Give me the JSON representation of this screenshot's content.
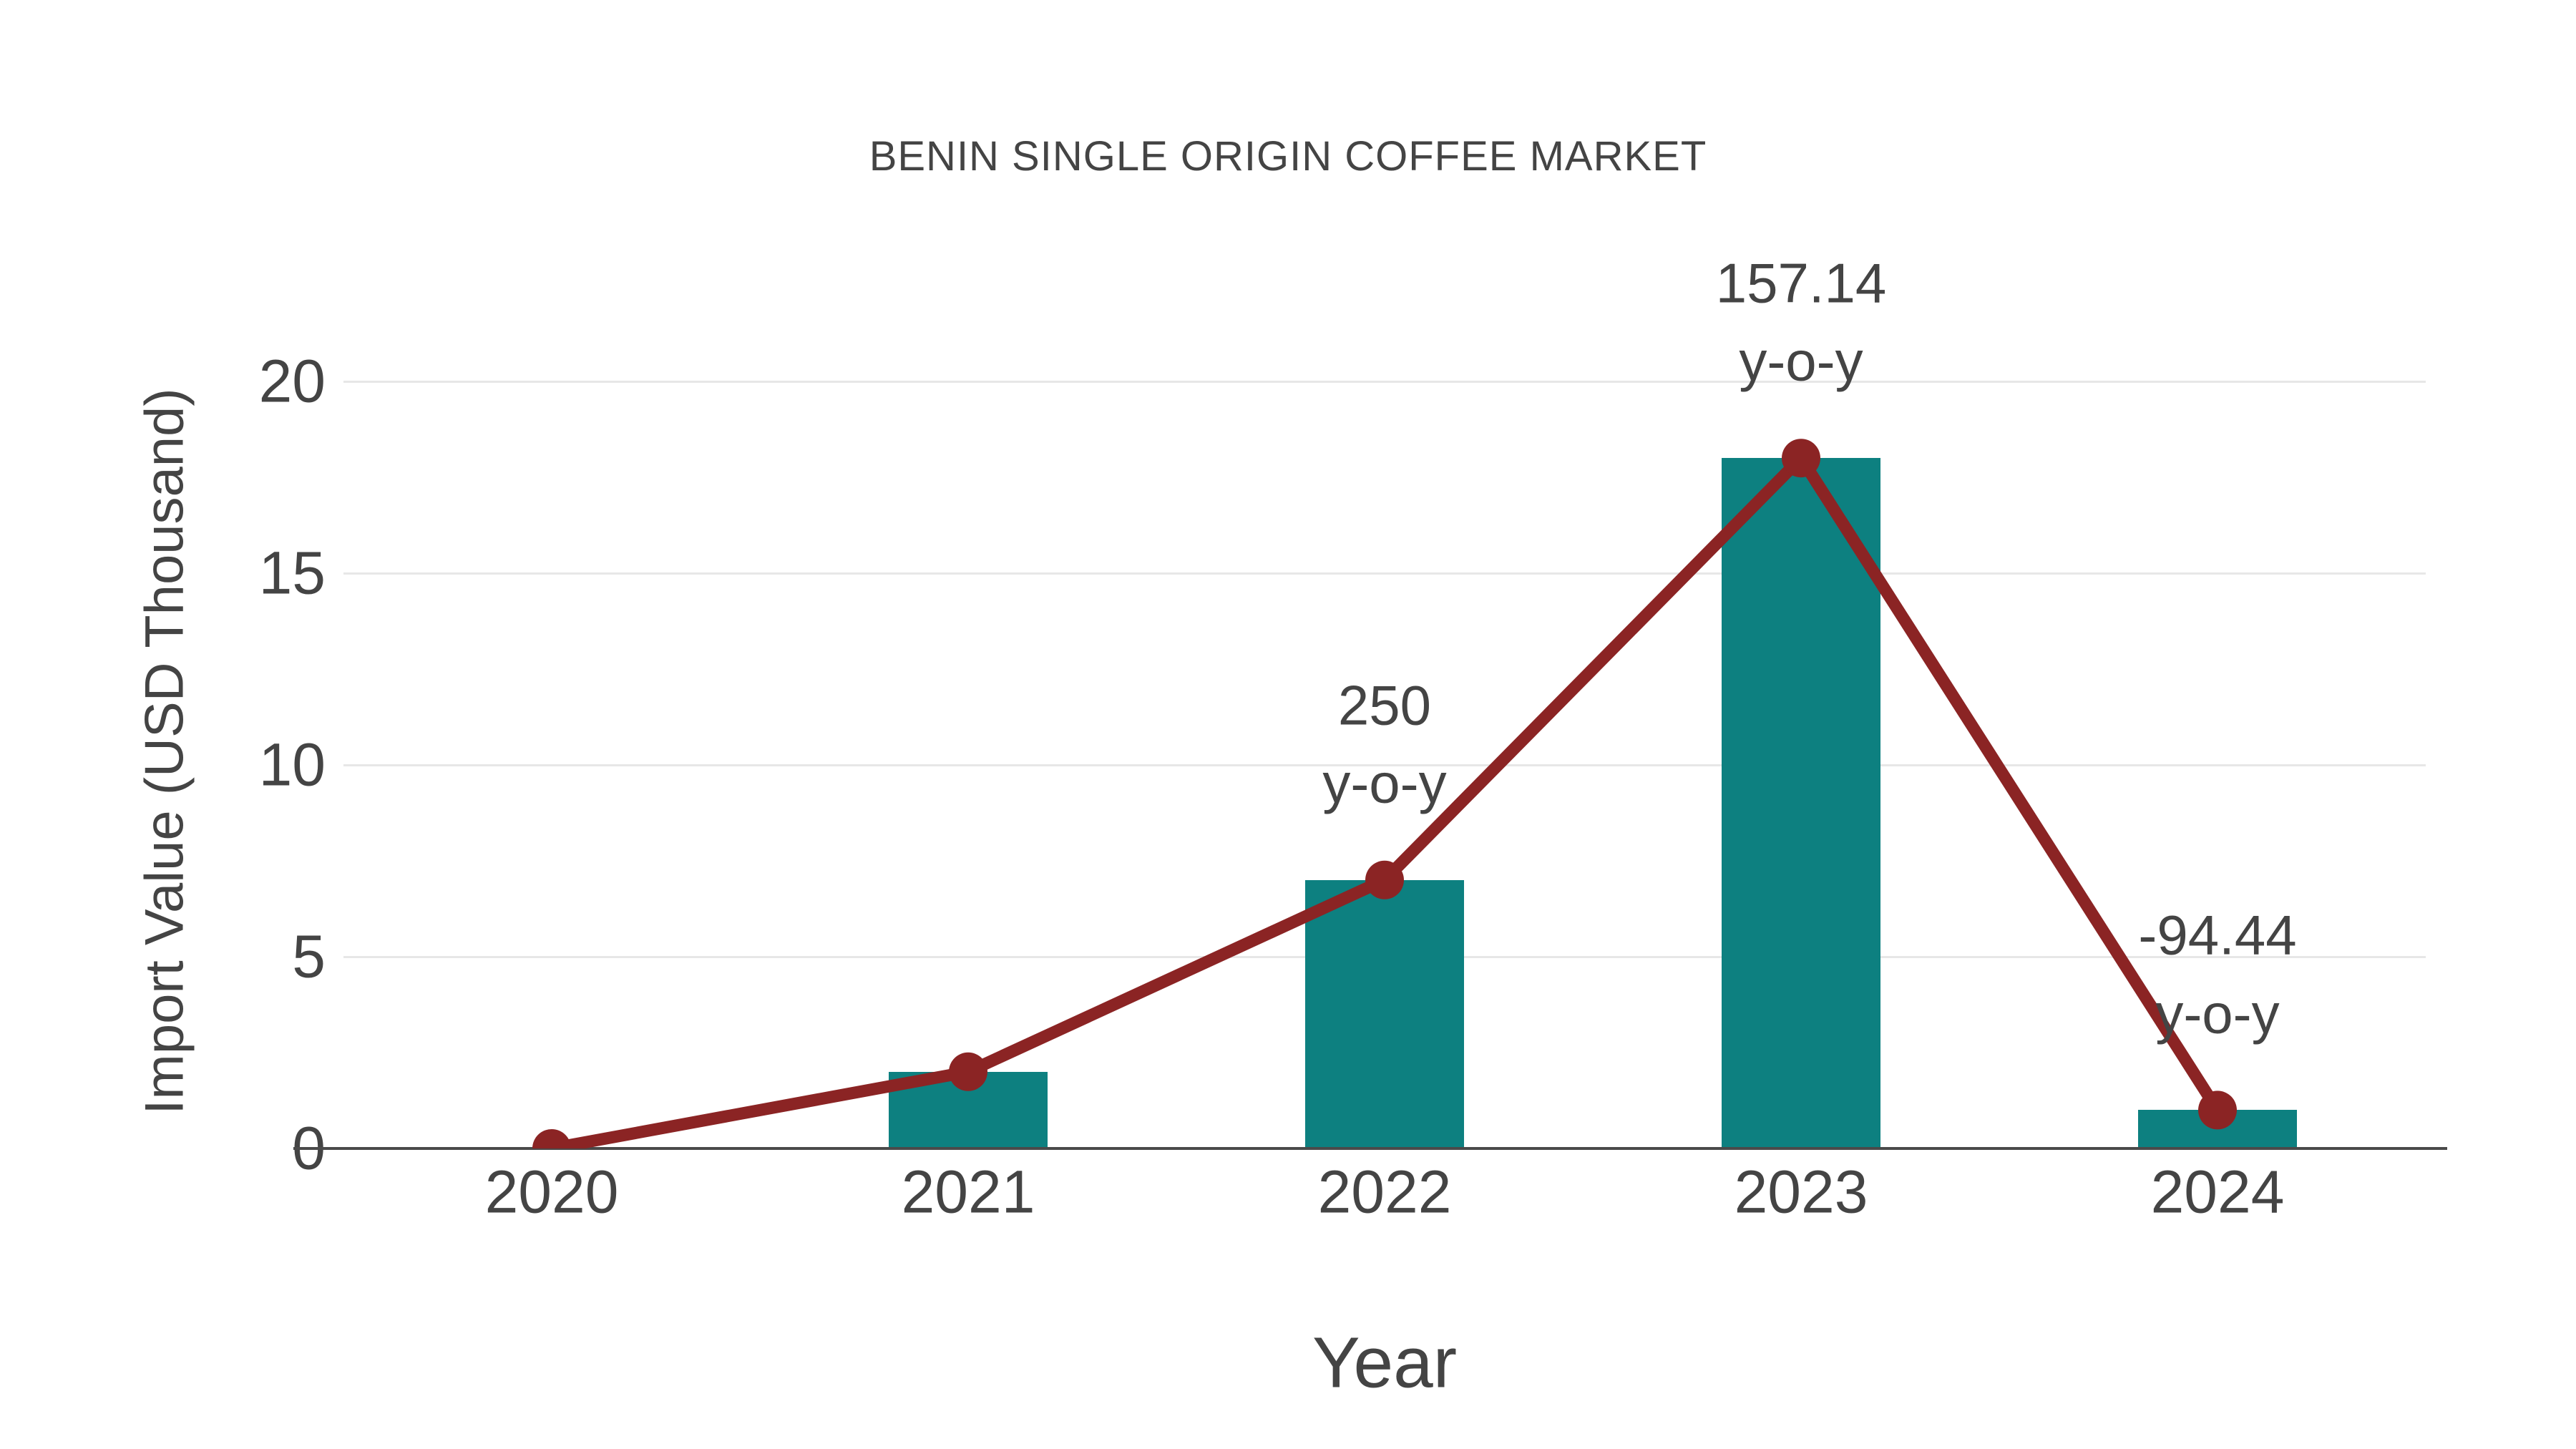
{
  "page": {
    "background": "#ffffff"
  },
  "chart_data": {
    "type": "bar",
    "title": "BENIN SINGLE ORIGIN COFFEE MARKET",
    "xlabel": "Year",
    "ylabel": "Import Value (USD Thousand)",
    "categories": [
      "2020",
      "2021",
      "2022",
      "2023",
      "2024"
    ],
    "series": [
      {
        "name": "import-value-bars",
        "type": "bar",
        "values": [
          0,
          2,
          7,
          18,
          1
        ]
      },
      {
        "name": "import-value-trend",
        "type": "line",
        "values": [
          0,
          2,
          7,
          18,
          1
        ]
      }
    ],
    "ylim": [
      0,
      20
    ],
    "yticks": [
      0,
      5,
      10,
      15,
      20
    ],
    "grid": true,
    "legend": false,
    "annotations": [
      {
        "category": "2022",
        "value": 7,
        "lines": [
          "250",
          "y-o-y"
        ]
      },
      {
        "category": "2023",
        "value": 18,
        "lines": [
          "157.14",
          "y-o-y"
        ]
      },
      {
        "category": "2024",
        "value": 1,
        "lines": [
          "-94.44",
          "y-o-y"
        ]
      }
    ],
    "colors": {
      "bar": "#0d8080",
      "line": "#8b2424",
      "marker": "#8b2424",
      "text": "#444444",
      "grid": "#e7e7e7",
      "axis": "#4a4a4a"
    }
  }
}
